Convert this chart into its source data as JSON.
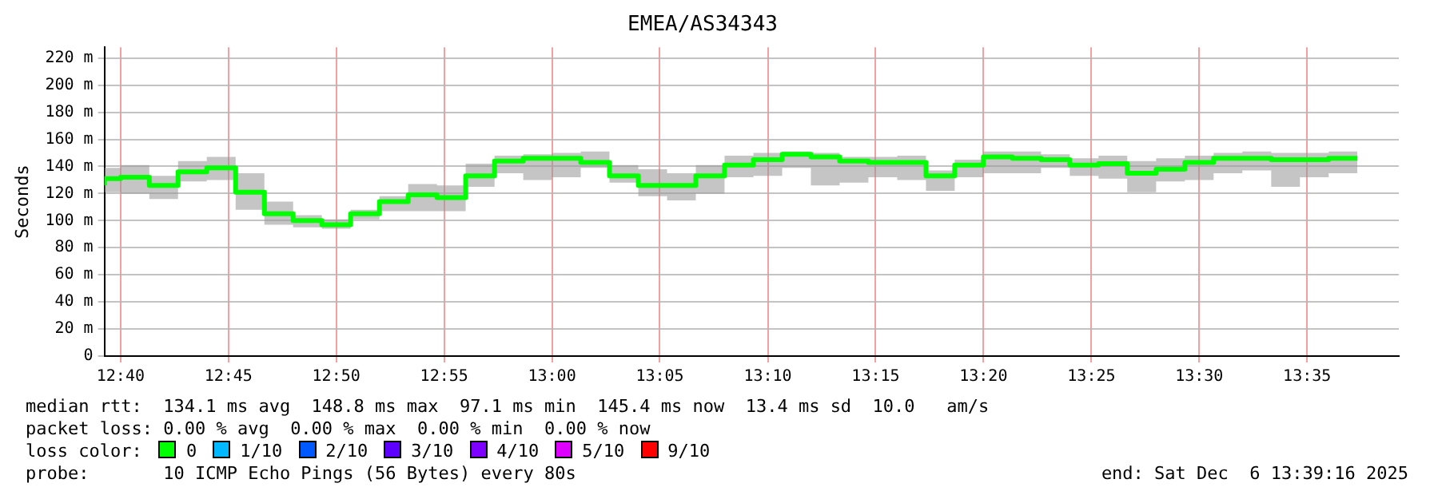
{
  "chart_data": {
    "type": "step",
    "title": "EMEA/AS34343",
    "ylabel": "Seconds",
    "legend_title": "loss color:",
    "legend": "bottom",
    "grid": true,
    "x": [
      12.6542,
      12.6667,
      12.6889,
      12.7111,
      12.7333,
      12.7556,
      12.7778,
      12.8,
      12.8222,
      12.8444,
      12.8667,
      12.8889,
      12.9111,
      12.9333,
      12.9556,
      12.9778,
      13.0,
      13.0222,
      13.0444,
      13.0667,
      13.0889,
      13.1111,
      13.1333,
      13.1556,
      13.1778,
      13.2,
      13.2222,
      13.2444,
      13.2667,
      13.2889,
      13.3111,
      13.3333,
      13.3556,
      13.3778,
      13.4,
      13.4222,
      13.4444,
      13.4667,
      13.4889,
      13.5111,
      13.5333,
      13.5556,
      13.5778,
      13.6,
      13.6222
    ],
    "xlim": [
      12.6542,
      13.6542
    ],
    "xticks": [
      {
        "value": 12.6667,
        "label": "12:40"
      },
      {
        "value": 12.75,
        "label": "12:45"
      },
      {
        "value": 12.8333,
        "label": "12:50"
      },
      {
        "value": 12.9167,
        "label": "12:55"
      },
      {
        "value": 13.0,
        "label": "13:00"
      },
      {
        "value": 13.0833,
        "label": "13:05"
      },
      {
        "value": 13.1667,
        "label": "13:10"
      },
      {
        "value": 13.25,
        "label": "13:15"
      },
      {
        "value": 13.3333,
        "label": "13:20"
      },
      {
        "value": 13.4167,
        "label": "13:25"
      },
      {
        "value": 13.5,
        "label": "13:30"
      },
      {
        "value": 13.5833,
        "label": "13:35"
      }
    ],
    "ylim": [
      0,
      228
    ],
    "yticks": [
      0,
      {
        "value": 20,
        "label": "20 m"
      },
      {
        "value": 40,
        "label": "40 m"
      },
      {
        "value": 60,
        "label": "60 m"
      },
      {
        "value": 80,
        "label": "80 m"
      },
      {
        "value": 100,
        "label": "100 m"
      },
      {
        "value": 120,
        "label": "120 m"
      },
      {
        "value": 140,
        "label": "140 m"
      },
      {
        "value": 160,
        "label": "160 m"
      },
      {
        "value": 180,
        "label": "180 m"
      },
      {
        "value": 200,
        "label": "200 m"
      },
      {
        "value": 220,
        "label": "220 m"
      }
    ],
    "series": [
      {
        "name": "0",
        "color": "#00ff00",
        "values": [
          126,
          131,
          132,
          126,
          136,
          139,
          121,
          105,
          100,
          97,
          105,
          114,
          119,
          117,
          133,
          144,
          146,
          146,
          143,
          133,
          126,
          126,
          133,
          141,
          145,
          149,
          147,
          144,
          143,
          143,
          133,
          141,
          147,
          146,
          145,
          141,
          142,
          135,
          138,
          143,
          146,
          146,
          145,
          145,
          146
        ],
        "lower": [
          110,
          121,
          120,
          116,
          129,
          130,
          108,
          97,
          95,
          94,
          101,
          107,
          107,
          107,
          125,
          135,
          130,
          132,
          139,
          128,
          118,
          115,
          120,
          132,
          133,
          139,
          126,
          128,
          132,
          130,
          122,
          132,
          135,
          135,
          139,
          133,
          131,
          121,
          129,
          130,
          135,
          137,
          125,
          132,
          135
        ],
        "upper": [
          131,
          139,
          141,
          133,
          144,
          147,
          135,
          114,
          104,
          101,
          108,
          118,
          127,
          126,
          142,
          148,
          149,
          150,
          151,
          141,
          138,
          135,
          141,
          148,
          150,
          151,
          150,
          147,
          147,
          148,
          137,
          145,
          151,
          151,
          149,
          146,
          148,
          144,
          146,
          148,
          150,
          151,
          150,
          150,
          151
        ]
      },
      {
        "name": "1/10",
        "color": "#00b8ff",
        "values": [
          null,
          null,
          null,
          null,
          null,
          null,
          null,
          null,
          null,
          null,
          null,
          null,
          null,
          null,
          null,
          null,
          null,
          null,
          null,
          null,
          null,
          null,
          null,
          null,
          null,
          null,
          null,
          null,
          null,
          null,
          null,
          null,
          null,
          null,
          null,
          null,
          null,
          null,
          null,
          null,
          null,
          null,
          null,
          null,
          null
        ]
      },
      {
        "name": "2/10",
        "color": "#0059ff",
        "values": [
          null,
          null,
          null,
          null,
          null,
          null,
          null,
          null,
          null,
          null,
          null,
          null,
          null,
          null,
          null,
          null,
          null,
          null,
          null,
          null,
          null,
          null,
          null,
          null,
          null,
          null,
          null,
          null,
          null,
          null,
          null,
          null,
          null,
          null,
          null,
          null,
          null,
          null,
          null,
          null,
          null,
          null,
          null,
          null,
          null
        ]
      },
      {
        "name": "3/10",
        "color": "#5e00ff",
        "values": [
          null,
          null,
          null,
          null,
          null,
          null,
          null,
          null,
          null,
          null,
          null,
          null,
          null,
          null,
          null,
          null,
          null,
          null,
          null,
          null,
          null,
          null,
          null,
          null,
          null,
          null,
          null,
          null,
          null,
          null,
          null,
          null,
          null,
          null,
          null,
          null,
          null,
          null,
          null,
          null,
          null,
          null,
          null,
          null,
          null
        ]
      },
      {
        "name": "4/10",
        "color": "#7e00ff",
        "values": [
          null,
          null,
          null,
          null,
          null,
          null,
          null,
          null,
          null,
          null,
          null,
          null,
          null,
          null,
          null,
          null,
          null,
          null,
          null,
          null,
          null,
          null,
          null,
          null,
          null,
          null,
          null,
          null,
          null,
          null,
          null,
          null,
          null,
          null,
          null,
          null,
          null,
          null,
          null,
          null,
          null,
          null,
          null,
          null,
          null
        ]
      },
      {
        "name": "5/10",
        "color": "#dd00ff",
        "values": [
          null,
          null,
          null,
          null,
          null,
          null,
          null,
          null,
          null,
          null,
          null,
          null,
          null,
          null,
          null,
          null,
          null,
          null,
          null,
          null,
          null,
          null,
          null,
          null,
          null,
          null,
          null,
          null,
          null,
          null,
          null,
          null,
          null,
          null,
          null,
          null,
          null,
          null,
          null,
          null,
          null,
          null,
          null,
          null,
          null
        ]
      },
      {
        "name": "9/10",
        "color": "#ff0000",
        "values": [
          null,
          null,
          null,
          null,
          null,
          null,
          null,
          null,
          null,
          null,
          null,
          null,
          null,
          null,
          null,
          null,
          null,
          null,
          null,
          null,
          null,
          null,
          null,
          null,
          null,
          null,
          null,
          null,
          null,
          null,
          null,
          null,
          null,
          null,
          null,
          null,
          null,
          null,
          null,
          null,
          null,
          null,
          null,
          null,
          null
        ]
      }
    ],
    "annotations": [
      "median rtt:  134.1 ms avg  148.8 ms max  97.1 ms min  145.4 ms now  13.4 ms sd  10.0   am/s",
      "packet loss: 0.00 % avg  0.00 % max  0.00 % min  0.00 % now",
      "probe:       10 ICMP Echo Pings (56 Bytes) every 80s",
      "end: Sat Dec  6 13:39:16 2025"
    ]
  }
}
